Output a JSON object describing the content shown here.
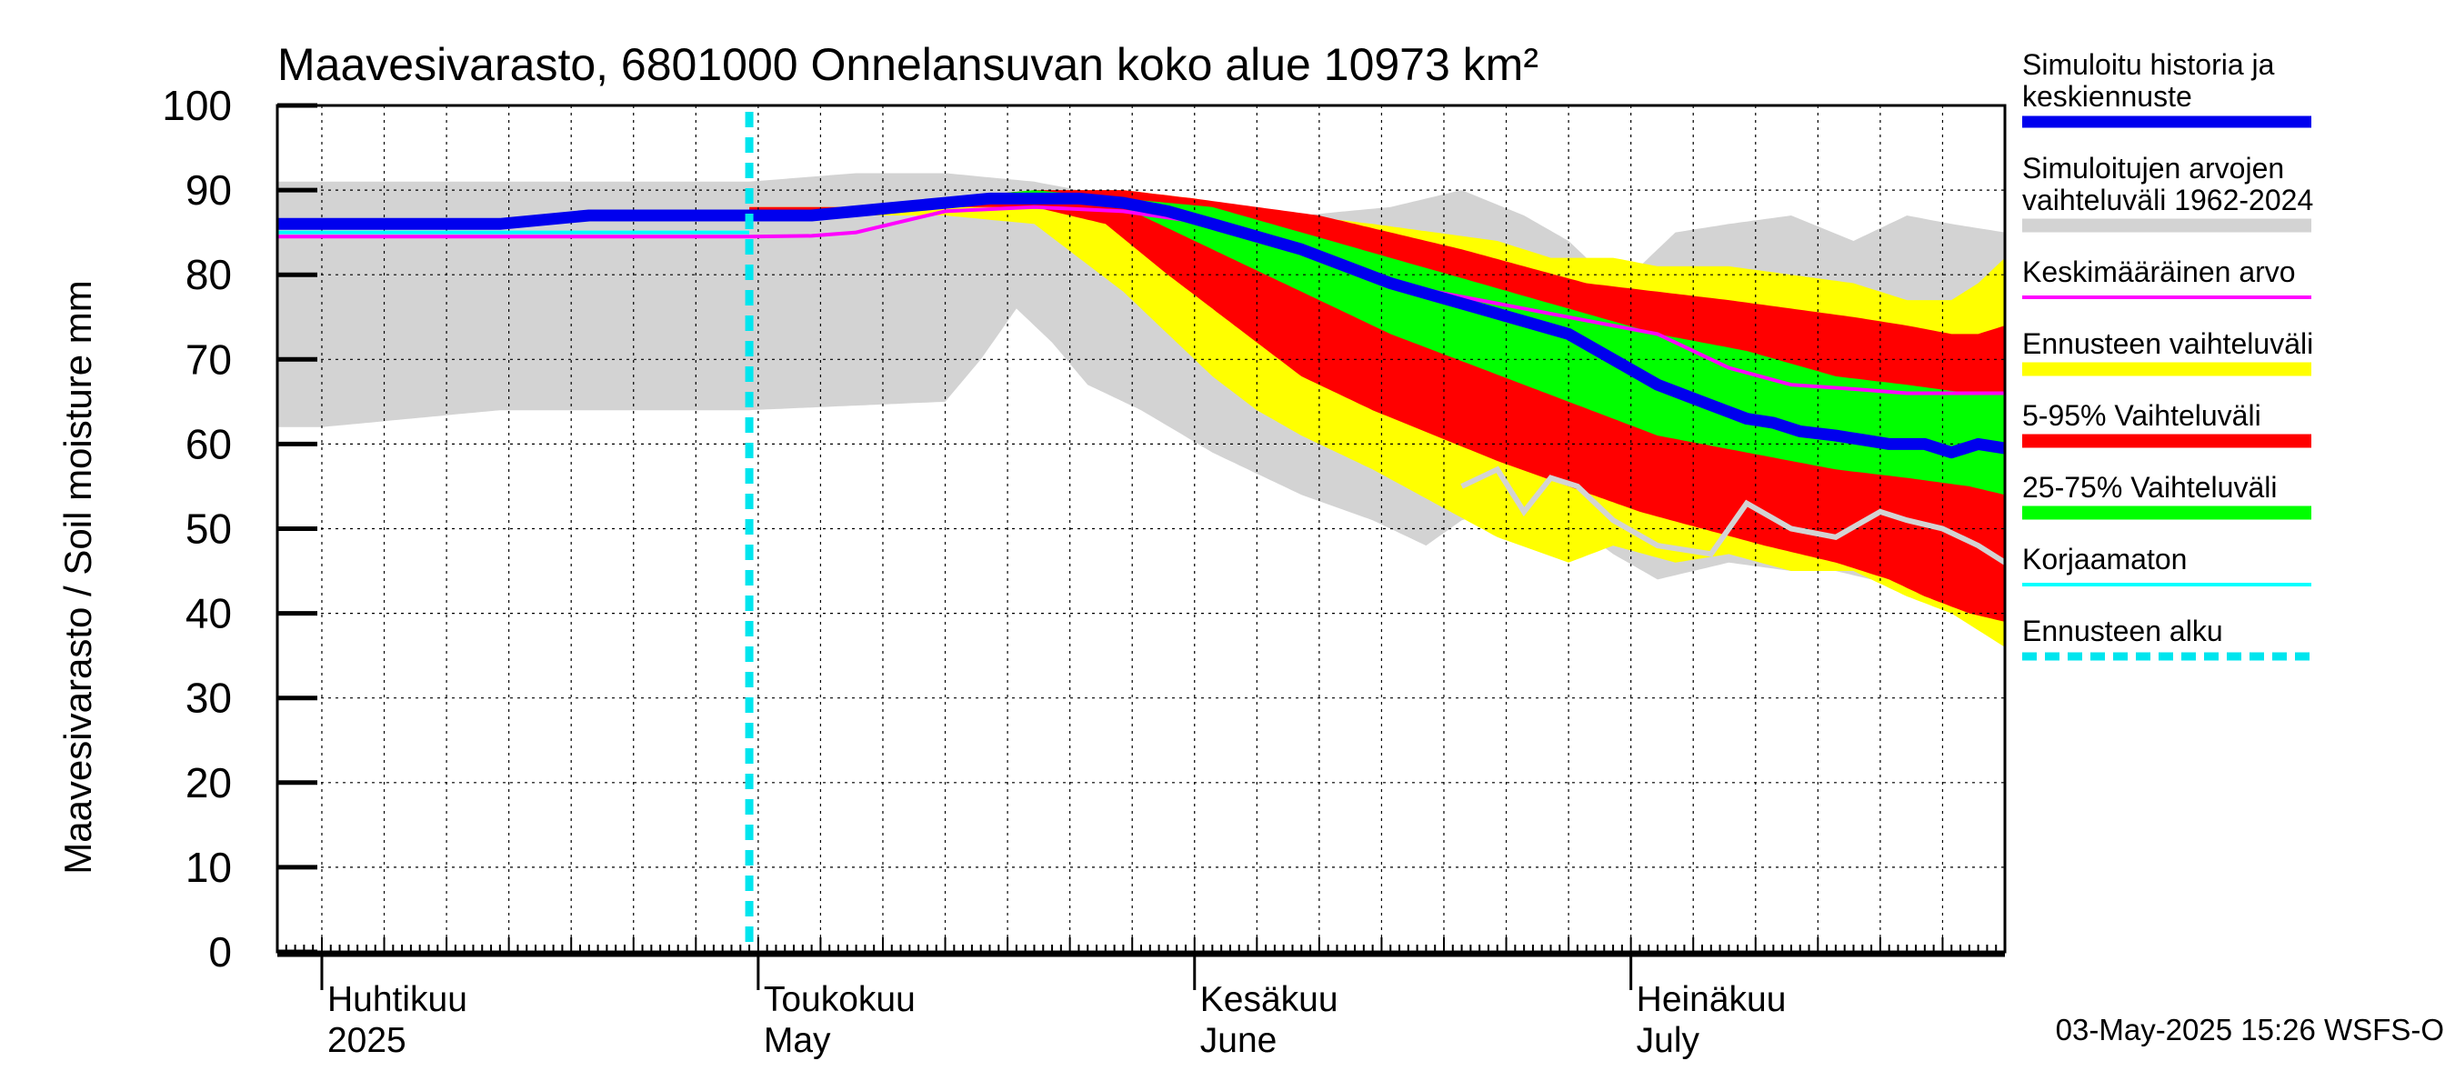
{
  "chart_data": {
    "type": "area",
    "title": "Maavesivarasto, 6801000 Onnelansuvan koko alue 10973 km²",
    "ylabel": "Maavesivarasto / Soil moisture   mm",
    "xlabel": "",
    "ylim": [
      0,
      100
    ],
    "y_ticks": [
      0,
      10,
      20,
      30,
      40,
      50,
      60,
      70,
      80,
      90,
      100
    ],
    "grid": true,
    "x_range_days": [
      -5,
      189
    ],
    "month_labels": [
      {
        "fi": "Huhtikuu",
        "en": "2025",
        "day": 0
      },
      {
        "fi": "Toukokuu",
        "en": "May",
        "day": 49
      },
      {
        "fi": "Kesäkuu",
        "en": "June",
        "day": 98
      },
      {
        "fi": "Heinäkuu",
        "en": "July",
        "day": 147
      }
    ],
    "forecast_start_day": 48,
    "timestamp": "03-May-2025 15:26 WSFS-O",
    "colors": {
      "history": "#0000ee",
      "sim_range": "#d3d3d3",
      "mean": "#ff00ff",
      "forecast_range": "#ffff00",
      "p5_95": "#ff0000",
      "p25_75": "#00ff00",
      "uncorrected": "#00ffff",
      "forecast_start": "#00e5ee",
      "simulated_past": "#d3d3d3"
    },
    "legend": [
      {
        "label": "Simuloitu historia ja keskiennuste",
        "color": "#0000ee",
        "style": "thick"
      },
      {
        "label": "Simuloitujen arvojen vaihteluväli 1962-2024",
        "color": "#d3d3d3",
        "style": "band"
      },
      {
        "label": "Keskimääräinen arvo",
        "color": "#ff00ff",
        "style": "line"
      },
      {
        "label": "Ennusteen vaihteluväli",
        "color": "#ffff00",
        "style": "band"
      },
      {
        "label": "5-95% Vaihteluväli",
        "color": "#ff0000",
        "style": "band"
      },
      {
        "label": "25-75% Vaihteluväli",
        "color": "#00ff00",
        "style": "band"
      },
      {
        "label": "Korjaamaton",
        "color": "#00ffff",
        "style": "line"
      },
      {
        "label": "Ennusteen alku",
        "color": "#00e5ee",
        "style": "dashed"
      }
    ],
    "series": {
      "sim_range_upper": {
        "x": [
          -5,
          10,
          20,
          30,
          48,
          60,
          70,
          80,
          90,
          100,
          110,
          120,
          128,
          135,
          140,
          145,
          148,
          152,
          158,
          165,
          172,
          178,
          183,
          189
        ],
        "y": [
          91,
          91,
          91,
          91,
          91,
          92,
          92,
          91,
          89,
          88,
          87,
          88,
          90,
          87,
          84,
          79,
          81,
          85,
          86,
          87,
          84,
          87,
          86,
          85
        ]
      },
      "sim_range_lower": {
        "x": [
          -5,
          0,
          20,
          48,
          70,
          74,
          78,
          82,
          86,
          92,
          100,
          110,
          118,
          124,
          128,
          132,
          136,
          140,
          145,
          150,
          158,
          165,
          170,
          178,
          183,
          189
        ],
        "y": [
          62,
          62,
          64,
          64,
          65,
          70,
          76,
          72,
          67,
          64,
          59,
          54,
          51,
          48,
          51,
          52,
          50,
          51,
          47,
          44,
          46,
          45,
          45,
          43,
          43,
          44
        ]
      },
      "forecast_upper": {
        "x": [
          48,
          60,
          70,
          80,
          90,
          98,
          104,
          110,
          118,
          125,
          132,
          138,
          145,
          150,
          158,
          165,
          172,
          178,
          183,
          186,
          189
        ],
        "y": [
          88,
          88,
          89,
          90,
          90,
          89,
          88,
          87,
          86,
          85,
          84,
          82,
          82,
          81,
          81,
          80,
          79,
          77,
          77,
          79,
          82
        ]
      },
      "forecast_lower": {
        "x": [
          48,
          60,
          70,
          80,
          85,
          90,
          95,
          100,
          105,
          110,
          118,
          125,
          132,
          140,
          145,
          152,
          158,
          165,
          172,
          178,
          183,
          186,
          189
        ],
        "y": [
          87,
          87,
          87,
          86,
          82,
          78,
          73,
          68,
          64,
          61,
          57,
          53,
          49,
          46,
          48,
          46,
          47,
          45,
          45,
          42,
          40,
          38,
          36
        ]
      },
      "p95": {
        "x": [
          48,
          60,
          70,
          80,
          90,
          98,
          105,
          112,
          120,
          128,
          135,
          142,
          150,
          158,
          165,
          172,
          178,
          183,
          186,
          189
        ],
        "y": [
          88,
          88,
          89,
          90,
          90,
          89,
          88,
          87,
          85,
          83,
          81,
          79,
          78,
          77,
          76,
          75,
          74,
          73,
          73,
          74
        ]
      },
      "p5": {
        "x": [
          48,
          60,
          70,
          80,
          88,
          95,
          100,
          105,
          110,
          118,
          125,
          132,
          140,
          148,
          155,
          162,
          170,
          176,
          180,
          185,
          189
        ],
        "y": [
          87,
          87,
          88,
          88,
          86,
          80,
          76,
          72,
          68,
          64,
          61,
          58,
          55,
          52,
          50,
          48,
          46,
          44,
          42,
          40,
          39
        ]
      },
      "p75": {
        "x": [
          48,
          60,
          70,
          80,
          90,
          100,
          110,
          120,
          130,
          140,
          150,
          160,
          170,
          178,
          185,
          189
        ],
        "y": [
          87,
          88,
          89,
          90,
          89,
          88,
          85,
          82,
          79,
          76,
          73,
          71,
          68,
          67,
          66,
          66
        ]
      },
      "p25": {
        "x": [
          48,
          60,
          70,
          80,
          90,
          100,
          110,
          120,
          130,
          140,
          150,
          160,
          170,
          178,
          185,
          189
        ],
        "y": [
          87,
          87,
          88,
          89,
          88,
          83,
          78,
          73,
          69,
          65,
          61,
          59,
          57,
          56,
          55,
          54
        ]
      },
      "median": {
        "x": [
          -5,
          10,
          20,
          30,
          40,
          48,
          55,
          60,
          65,
          70,
          75,
          80,
          85,
          90,
          95,
          100,
          105,
          110,
          115,
          120,
          125,
          130,
          135,
          140,
          145,
          150,
          155,
          160,
          163,
          166,
          170,
          173,
          176,
          180,
          183,
          186,
          189
        ],
        "y": [
          86,
          86,
          86,
          87,
          87,
          87,
          87,
          87.5,
          88,
          88.5,
          89,
          89,
          89,
          88.5,
          87.5,
          86,
          84.5,
          83,
          81,
          79,
          77.5,
          76,
          74.5,
          73,
          70,
          67,
          65,
          63,
          62.5,
          61.5,
          61,
          60.5,
          60,
          60,
          59,
          60,
          59.5
        ]
      },
      "mean": {
        "x": [
          -5,
          20,
          40,
          48,
          55,
          60,
          70,
          80,
          90,
          100,
          110,
          120,
          130,
          140,
          150,
          158,
          165,
          172,
          178,
          183,
          189
        ],
        "y": [
          84.5,
          84.5,
          84.5,
          84.5,
          84.6,
          85,
          87.5,
          88,
          87.5,
          86,
          83,
          79,
          77,
          75,
          73,
          69,
          67,
          66.5,
          66,
          66,
          66
        ]
      },
      "uncorrected": {
        "x": [
          -5,
          48
        ],
        "y": [
          85,
          85
        ]
      },
      "simulated_past": {
        "x": [
          128,
          132,
          135,
          138,
          141,
          145,
          150,
          156,
          160,
          165,
          170,
          175,
          178,
          182,
          184,
          186,
          189
        ],
        "y": [
          55,
          57,
          52,
          56,
          55,
          51,
          48,
          47,
          53,
          50,
          49,
          52,
          51,
          50,
          49,
          48,
          46
        ]
      }
    }
  }
}
